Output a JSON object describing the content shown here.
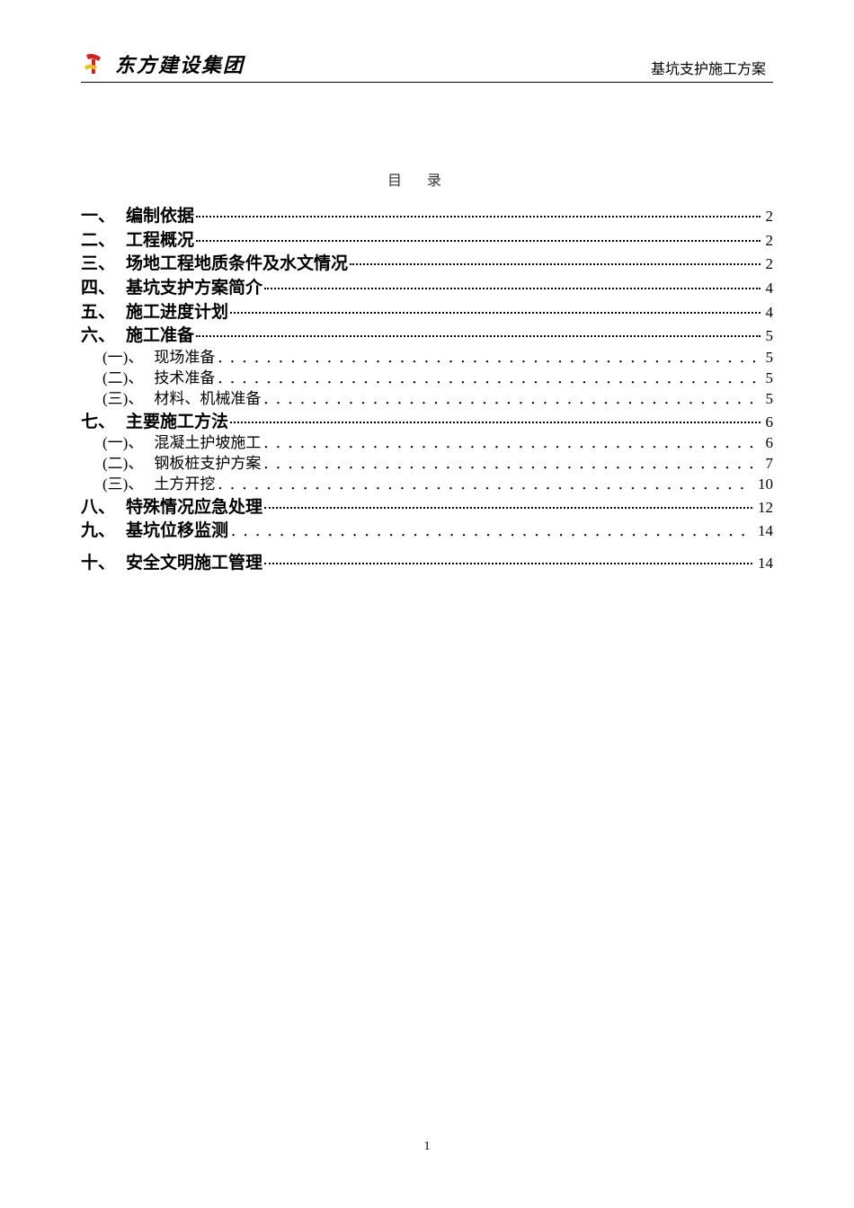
{
  "header": {
    "company_name": "东方建设集团",
    "doc_title": "基坑支护施工方案",
    "logo_colors": {
      "red": "#d32020",
      "yellow": "#e8c020"
    }
  },
  "toc": {
    "title": "目录",
    "entries": [
      {
        "level": 1,
        "num": "一、",
        "label": "编制依据",
        "page": "2",
        "bold": true,
        "leader": "fine"
      },
      {
        "level": 1,
        "num": "二、",
        "label": "工程概况",
        "page": "2",
        "bold": true,
        "leader": "fine"
      },
      {
        "level": 1,
        "num": "三、",
        "label": "场地工程地质条件及水文情况",
        "page": "2",
        "bold": true,
        "leader": "fine"
      },
      {
        "level": 1,
        "num": "四、",
        "label": "基坑支护方案简介",
        "page": "4",
        "bold": true,
        "leader": "fine"
      },
      {
        "level": 1,
        "num": "五、",
        "label": "施工进度计划",
        "page": "4",
        "bold": true,
        "leader": "fine"
      },
      {
        "level": 1,
        "num": "六、",
        "label": "施工准备",
        "page": "5",
        "bold": true,
        "leader": "fine"
      },
      {
        "level": 2,
        "num": "(一)、",
        "label": "现场准备",
        "page": "5",
        "bold": false,
        "leader": "wide"
      },
      {
        "level": 2,
        "num": "(二)、",
        "label": "技术准备",
        "page": "5",
        "bold": false,
        "leader": "wide"
      },
      {
        "level": 2,
        "num": "(三)、",
        "label": "材料、机械准备",
        "page": "5",
        "bold": false,
        "leader": "wide"
      },
      {
        "level": 1,
        "num": "七、",
        "label": "主要施工方法",
        "page": "6",
        "bold": true,
        "leader": "fine"
      },
      {
        "level": 2,
        "num": "(一)、",
        "label": "混凝土护坡施工",
        "page": "6",
        "bold": false,
        "leader": "wide"
      },
      {
        "level": 2,
        "num": "(二)、",
        "label": "钢板桩支护方案",
        "page": "7",
        "bold": false,
        "leader": "wide"
      },
      {
        "level": 2,
        "num": "(三)、",
        "label": "土方开挖",
        "page": "10",
        "bold": false,
        "leader": "wide"
      },
      {
        "level": 1,
        "num": "八、",
        "label": "特殊情况应急处理",
        "page": "12",
        "bold": true,
        "leader": "fine"
      },
      {
        "level": 1,
        "num": "九、",
        "label": "基坑位移监测",
        "page": "14",
        "bold": true,
        "leader": "wide"
      },
      {
        "level": 1,
        "num": "十、",
        "label": "安全文明施工管理",
        "page": "14",
        "bold": true,
        "leader": "fine"
      }
    ]
  },
  "footer": {
    "page_number": "1"
  }
}
